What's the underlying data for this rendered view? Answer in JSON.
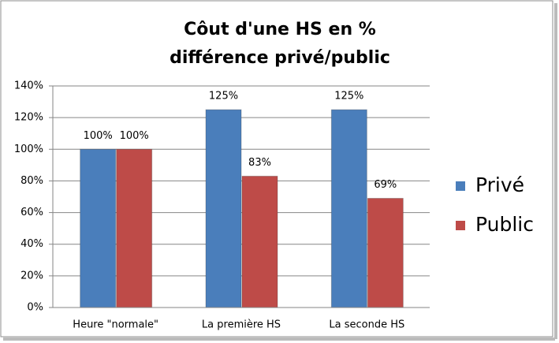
{
  "chart_data": {
    "type": "bar",
    "title": [
      "Côut d'une HS en %",
      "différence privé/public"
    ],
    "categories": [
      "Heure \"normale\"",
      "La première HS",
      "La seconde HS"
    ],
    "series": [
      {
        "name": "Privé",
        "color": "#4a7ebb",
        "values": [
          100,
          125,
          125
        ],
        "value_labels": [
          "100%",
          "125%",
          "125%"
        ]
      },
      {
        "name": "Public",
        "color": "#be4b48",
        "values": [
          100,
          83,
          69
        ],
        "value_labels": [
          "100%",
          "83%",
          "69%"
        ]
      }
    ],
    "ylim": [
      0,
      140
    ],
    "yticks": [
      {
        "value": 0,
        "label": "0%"
      },
      {
        "value": 20,
        "label": "20%"
      },
      {
        "value": 40,
        "label": "40%"
      },
      {
        "value": 60,
        "label": "60%"
      },
      {
        "value": 80,
        "label": "80%"
      },
      {
        "value": 100,
        "label": "100%"
      },
      {
        "value": 120,
        "label": "120%"
      },
      {
        "value": 140,
        "label": "140%"
      }
    ],
    "grid": true,
    "legend": "right"
  }
}
